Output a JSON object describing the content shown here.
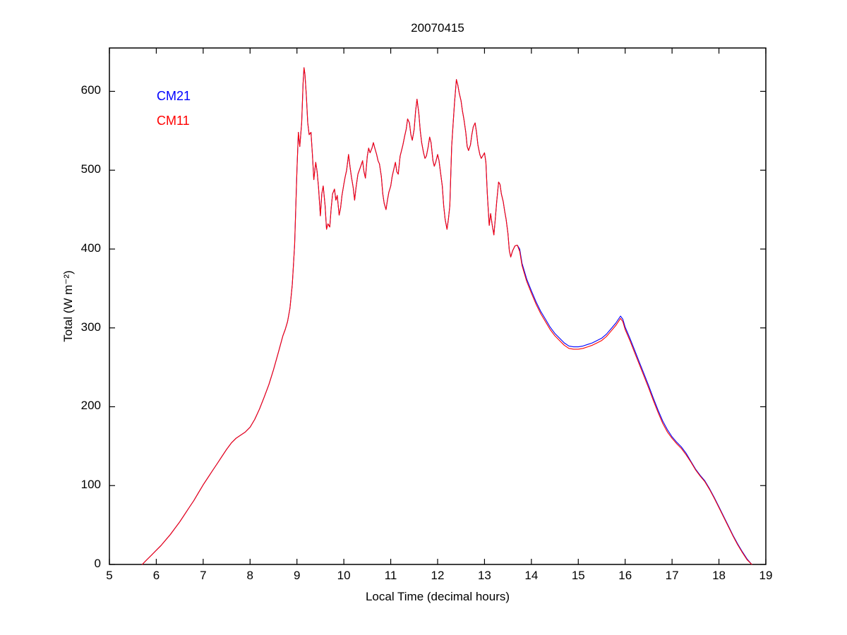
{
  "chart_data": {
    "type": "line",
    "title": "20070415",
    "xlabel": "Local Time (decimal hours)",
    "ylabel": "Total (W m⁻²)",
    "xlim": [
      5,
      19
    ],
    "ylim": [
      0,
      655
    ],
    "xticks": [
      5,
      6,
      7,
      8,
      9,
      10,
      11,
      12,
      13,
      14,
      15,
      16,
      17,
      18,
      19
    ],
    "yticks": [
      0,
      100,
      200,
      300,
      400,
      500,
      600
    ],
    "grid": false,
    "background": "#ffffff",
    "axis_color": "#000000",
    "legend": {
      "position": "upper-left-inside",
      "items": [
        {
          "label": "CM21",
          "color": "#0000ff"
        },
        {
          "label": "CM11",
          "color": "#ff0000"
        }
      ]
    },
    "columns": [
      "time",
      "CM21",
      "CM11"
    ],
    "series": [
      {
        "name": "CM21",
        "color": "#0000ff",
        "column": 1
      },
      {
        "name": "CM11",
        "color": "#ff0000",
        "column": 2
      }
    ],
    "points": [
      [
        5.7,
        0,
        0
      ],
      [
        5.8,
        6,
        6
      ],
      [
        5.9,
        12,
        12
      ],
      [
        6.0,
        18,
        18
      ],
      [
        6.1,
        24,
        24
      ],
      [
        6.2,
        31,
        31
      ],
      [
        6.3,
        38,
        38
      ],
      [
        6.4,
        46,
        46
      ],
      [
        6.5,
        54,
        54
      ],
      [
        6.6,
        63,
        63
      ],
      [
        6.7,
        72,
        72
      ],
      [
        6.8,
        81,
        81
      ],
      [
        6.9,
        91,
        91
      ],
      [
        7.0,
        101,
        101
      ],
      [
        7.1,
        110,
        110
      ],
      [
        7.2,
        119,
        119
      ],
      [
        7.3,
        128,
        128
      ],
      [
        7.4,
        137,
        137
      ],
      [
        7.5,
        146,
        146
      ],
      [
        7.6,
        154,
        154
      ],
      [
        7.7,
        160,
        160
      ],
      [
        7.8,
        164,
        164
      ],
      [
        7.9,
        168,
        168
      ],
      [
        8.0,
        174,
        174
      ],
      [
        8.1,
        184,
        184
      ],
      [
        8.2,
        197,
        197
      ],
      [
        8.3,
        212,
        212
      ],
      [
        8.4,
        228,
        228
      ],
      [
        8.5,
        247,
        247
      ],
      [
        8.6,
        268,
        268
      ],
      [
        8.7,
        290,
        290
      ],
      [
        8.75,
        298,
        298
      ],
      [
        8.8,
        308,
        308
      ],
      [
        8.85,
        325,
        325
      ],
      [
        8.9,
        355,
        355
      ],
      [
        8.95,
        405,
        405
      ],
      [
        9.0,
        500,
        500
      ],
      [
        9.03,
        548,
        548
      ],
      [
        9.06,
        530,
        530
      ],
      [
        9.1,
        560,
        560
      ],
      [
        9.13,
        610,
        610
      ],
      [
        9.15,
        630,
        630
      ],
      [
        9.17,
        622,
        622
      ],
      [
        9.2,
        595,
        595
      ],
      [
        9.23,
        560,
        560
      ],
      [
        9.26,
        545,
        545
      ],
      [
        9.3,
        548,
        548
      ],
      [
        9.33,
        520,
        520
      ],
      [
        9.36,
        488,
        488
      ],
      [
        9.4,
        510,
        510
      ],
      [
        9.43,
        498,
        498
      ],
      [
        9.46,
        478,
        478
      ],
      [
        9.5,
        442,
        442
      ],
      [
        9.53,
        470,
        470
      ],
      [
        9.56,
        480,
        480
      ],
      [
        9.6,
        455,
        455
      ],
      [
        9.63,
        425,
        425
      ],
      [
        9.66,
        432,
        432
      ],
      [
        9.7,
        428,
        428
      ],
      [
        9.73,
        452,
        452
      ],
      [
        9.76,
        470,
        470
      ],
      [
        9.8,
        476,
        476
      ],
      [
        9.83,
        462,
        462
      ],
      [
        9.86,
        468,
        468
      ],
      [
        9.9,
        443,
        443
      ],
      [
        9.93,
        452,
        452
      ],
      [
        9.96,
        468,
        468
      ],
      [
        10.0,
        482,
        482
      ],
      [
        10.03,
        492,
        492
      ],
      [
        10.06,
        500,
        500
      ],
      [
        10.1,
        520,
        520
      ],
      [
        10.13,
        505,
        505
      ],
      [
        10.16,
        492,
        492
      ],
      [
        10.2,
        478,
        478
      ],
      [
        10.23,
        462,
        462
      ],
      [
        10.26,
        478,
        478
      ],
      [
        10.3,
        495,
        495
      ],
      [
        10.33,
        500,
        500
      ],
      [
        10.36,
        505,
        505
      ],
      [
        10.4,
        512,
        512
      ],
      [
        10.43,
        498,
        498
      ],
      [
        10.46,
        490,
        490
      ],
      [
        10.5,
        518,
        518
      ],
      [
        10.53,
        528,
        528
      ],
      [
        10.56,
        522,
        522
      ],
      [
        10.6,
        528,
        528
      ],
      [
        10.63,
        535,
        535
      ],
      [
        10.66,
        528,
        528
      ],
      [
        10.7,
        520,
        520
      ],
      [
        10.73,
        512,
        512
      ],
      [
        10.76,
        508,
        508
      ],
      [
        10.8,
        492,
        492
      ],
      [
        10.83,
        470,
        470
      ],
      [
        10.86,
        458,
        458
      ],
      [
        10.9,
        450,
        450
      ],
      [
        10.93,
        462,
        462
      ],
      [
        10.96,
        472,
        472
      ],
      [
        11.0,
        480,
        480
      ],
      [
        11.03,
        492,
        492
      ],
      [
        11.06,
        500,
        500
      ],
      [
        11.1,
        510,
        510
      ],
      [
        11.13,
        498,
        498
      ],
      [
        11.16,
        495,
        495
      ],
      [
        11.2,
        518,
        518
      ],
      [
        11.23,
        525,
        525
      ],
      [
        11.26,
        532,
        532
      ],
      [
        11.3,
        544,
        544
      ],
      [
        11.33,
        552,
        552
      ],
      [
        11.36,
        565,
        565
      ],
      [
        11.4,
        560,
        560
      ],
      [
        11.43,
        545,
        545
      ],
      [
        11.46,
        538,
        538
      ],
      [
        11.5,
        552,
        552
      ],
      [
        11.53,
        575,
        575
      ],
      [
        11.56,
        590,
        590
      ],
      [
        11.6,
        572,
        572
      ],
      [
        11.63,
        550,
        550
      ],
      [
        11.66,
        535,
        535
      ],
      [
        11.7,
        522,
        522
      ],
      [
        11.73,
        515,
        515
      ],
      [
        11.76,
        518,
        518
      ],
      [
        11.8,
        530,
        530
      ],
      [
        11.83,
        542,
        542
      ],
      [
        11.86,
        535,
        535
      ],
      [
        11.9,
        512,
        512
      ],
      [
        11.93,
        505,
        505
      ],
      [
        11.96,
        510,
        510
      ],
      [
        12.0,
        520,
        520
      ],
      [
        12.03,
        512,
        512
      ],
      [
        12.06,
        498,
        498
      ],
      [
        12.1,
        480,
        480
      ],
      [
        12.13,
        455,
        455
      ],
      [
        12.16,
        438,
        438
      ],
      [
        12.2,
        425,
        425
      ],
      [
        12.23,
        438,
        438
      ],
      [
        12.26,
        455,
        455
      ],
      [
        12.3,
        530,
        530
      ],
      [
        12.33,
        558,
        558
      ],
      [
        12.36,
        585,
        585
      ],
      [
        12.4,
        615,
        615
      ],
      [
        12.43,
        608,
        608
      ],
      [
        12.46,
        598,
        598
      ],
      [
        12.5,
        588,
        588
      ],
      [
        12.53,
        575,
        575
      ],
      [
        12.56,
        565,
        565
      ],
      [
        12.6,
        548,
        548
      ],
      [
        12.63,
        530,
        530
      ],
      [
        12.66,
        525,
        525
      ],
      [
        12.7,
        532,
        532
      ],
      [
        12.73,
        545,
        545
      ],
      [
        12.76,
        555,
        555
      ],
      [
        12.8,
        560,
        560
      ],
      [
        12.83,
        548,
        548
      ],
      [
        12.86,
        532,
        532
      ],
      [
        12.9,
        520,
        520
      ],
      [
        12.93,
        515,
        515
      ],
      [
        12.96,
        518,
        518
      ],
      [
        13.0,
        522,
        522
      ],
      [
        13.03,
        510,
        510
      ],
      [
        13.06,
        470,
        470
      ],
      [
        13.1,
        430,
        430
      ],
      [
        13.13,
        445,
        445
      ],
      [
        13.16,
        432,
        432
      ],
      [
        13.2,
        418,
        418
      ],
      [
        13.23,
        438,
        438
      ],
      [
        13.26,
        460,
        460
      ],
      [
        13.3,
        485,
        485
      ],
      [
        13.33,
        482,
        482
      ],
      [
        13.36,
        470,
        470
      ],
      [
        13.4,
        460,
        460
      ],
      [
        13.43,
        448,
        448
      ],
      [
        13.46,
        438,
        438
      ],
      [
        13.5,
        420,
        420
      ],
      [
        13.53,
        398,
        398
      ],
      [
        13.56,
        390,
        390
      ],
      [
        13.6,
        398,
        398
      ],
      [
        13.65,
        404,
        404
      ],
      [
        13.7,
        405,
        405
      ],
      [
        13.75,
        400,
        397
      ],
      [
        13.8,
        382,
        379
      ],
      [
        13.85,
        372,
        369
      ],
      [
        13.9,
        362,
        359
      ],
      [
        14.0,
        347,
        344
      ],
      [
        14.1,
        333,
        330
      ],
      [
        14.2,
        321,
        318
      ],
      [
        14.3,
        311,
        308
      ],
      [
        14.4,
        301,
        298
      ],
      [
        14.5,
        293,
        290
      ],
      [
        14.6,
        287,
        284
      ],
      [
        14.7,
        281,
        278
      ],
      [
        14.8,
        277,
        274
      ],
      [
        14.9,
        276,
        273
      ],
      [
        15.0,
        276,
        273
      ],
      [
        15.1,
        277,
        274
      ],
      [
        15.2,
        279,
        276
      ],
      [
        15.3,
        281,
        278
      ],
      [
        15.4,
        284,
        281
      ],
      [
        15.5,
        287,
        284
      ],
      [
        15.6,
        292,
        289
      ],
      [
        15.7,
        299,
        296
      ],
      [
        15.8,
        306,
        303
      ],
      [
        15.9,
        315,
        312
      ],
      [
        15.95,
        311,
        308
      ],
      [
        16.0,
        301,
        298
      ],
      [
        16.1,
        287,
        284
      ],
      [
        16.2,
        272,
        269
      ],
      [
        16.3,
        257,
        254
      ],
      [
        16.4,
        242,
        239
      ],
      [
        16.5,
        227,
        224
      ],
      [
        16.6,
        211,
        208
      ],
      [
        16.7,
        196,
        193
      ],
      [
        16.8,
        182,
        179
      ],
      [
        16.9,
        171,
        168
      ],
      [
        17.0,
        162,
        160
      ],
      [
        17.1,
        155,
        153
      ],
      [
        17.2,
        149,
        147
      ],
      [
        17.3,
        141,
        139
      ],
      [
        17.4,
        131,
        130
      ],
      [
        17.5,
        121,
        120
      ],
      [
        17.6,
        113,
        112
      ],
      [
        17.7,
        106,
        105
      ],
      [
        17.8,
        96,
        95
      ],
      [
        17.9,
        85,
        84
      ],
      [
        18.0,
        73,
        72
      ],
      [
        18.1,
        61,
        60
      ],
      [
        18.2,
        49,
        48
      ],
      [
        18.3,
        37,
        36
      ],
      [
        18.4,
        26,
        25
      ],
      [
        18.5,
        16,
        15
      ],
      [
        18.6,
        7,
        6
      ],
      [
        18.7,
        0,
        0
      ]
    ]
  }
}
